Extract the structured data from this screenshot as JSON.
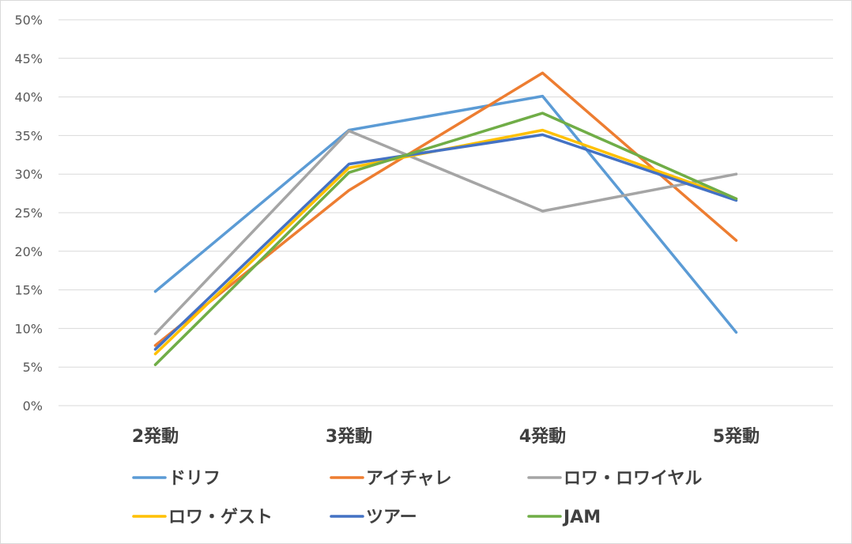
{
  "chart_data": {
    "type": "line",
    "title": "",
    "xlabel": "",
    "ylabel": "",
    "categories": [
      "2発動",
      "3発動",
      "4発動",
      "5発動"
    ],
    "ylim": [
      0,
      50
    ],
    "yticks": [
      "0%",
      "5%",
      "10%",
      "15%",
      "20%",
      "25%",
      "30%",
      "35%",
      "40%",
      "45%",
      "50%"
    ],
    "grid": true,
    "legend_position": "bottom",
    "series": [
      {
        "name": "ドリフ",
        "color": "#5b9bd5",
        "values": [
          14.8,
          35.7,
          40.1,
          9.5
        ]
      },
      {
        "name": "アイチャレ",
        "color": "#ed7d31",
        "values": [
          7.8,
          27.9,
          43.1,
          21.4
        ]
      },
      {
        "name": "ロワ・ロワイヤル",
        "color": "#a5a5a5",
        "values": [
          9.3,
          35.6,
          25.2,
          30.0
        ]
      },
      {
        "name": "ロワ・ゲスト",
        "color": "#ffc000",
        "values": [
          6.7,
          30.8,
          35.7,
          26.8
        ]
      },
      {
        "name": "ツアー",
        "color": "#4472c4",
        "values": [
          7.3,
          31.3,
          35.1,
          26.6
        ]
      },
      {
        "name": "JAM",
        "color": "#70ad47",
        "values": [
          5.3,
          30.2,
          37.9,
          26.8
        ]
      }
    ]
  }
}
